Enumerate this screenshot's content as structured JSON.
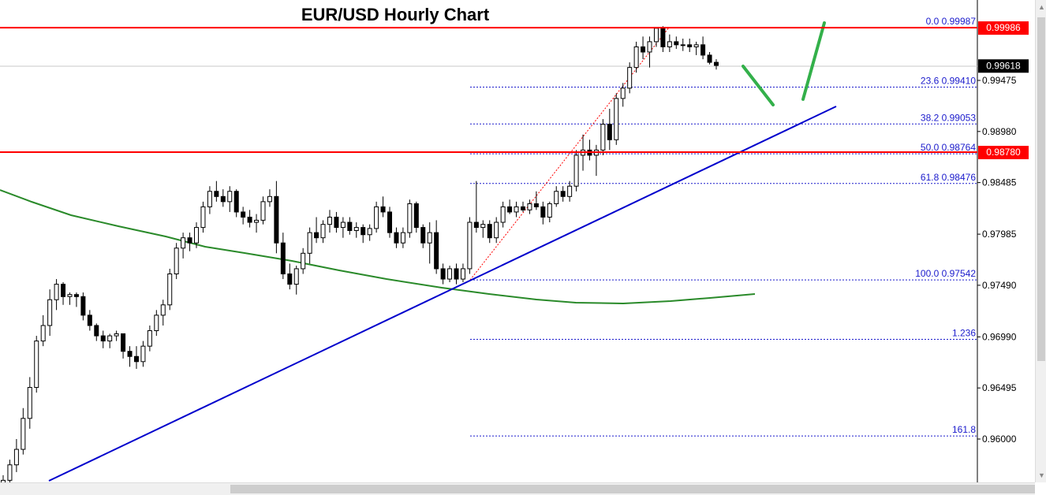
{
  "chart_data": {
    "type": "candlestick",
    "title": "EUR/USD Hourly Chart",
    "y_axis_ticks": [
      "0.99475",
      "0.98980",
      "0.98485",
      "0.97985",
      "0.97490",
      "0.96990",
      "0.96495",
      "0.96000"
    ],
    "ylim": [
      0.955,
      1.0009
    ],
    "levels": [
      {
        "name": "resistance",
        "value": 0.99986,
        "label": "0.99986",
        "color": "#ff0000"
      },
      {
        "name": "support",
        "value": 0.9878,
        "label": "0.98780",
        "color": "#ff0000"
      },
      {
        "name": "current-price",
        "value": 0.99618,
        "label": "0.99618",
        "color": "#000000"
      }
    ],
    "fibonacci": [
      {
        "label": "0.0 0.99987",
        "value": 0.99987
      },
      {
        "label": "23.6 0.99410",
        "value": 0.9941
      },
      {
        "label": "38.2 0.99053",
        "value": 0.99053
      },
      {
        "label": "50.0 0.98764",
        "value": 0.98764
      },
      {
        "label": "61.8 0.98476",
        "value": 0.98476
      },
      {
        "label": "100.0 0.97542",
        "value": 0.97542
      },
      {
        "label": "1.236",
        "value": 0.96966
      },
      {
        "label": "161.8",
        "value": 0.9603
      }
    ],
    "candles": [
      [
        0.9545,
        0.9565,
        0.953,
        0.956
      ],
      [
        0.956,
        0.958,
        0.955,
        0.9575
      ],
      [
        0.9575,
        0.96,
        0.9568,
        0.959
      ],
      [
        0.959,
        0.963,
        0.9585,
        0.962
      ],
      [
        0.962,
        0.966,
        0.961,
        0.965
      ],
      [
        0.965,
        0.97,
        0.9645,
        0.9695
      ],
      [
        0.9695,
        0.972,
        0.969,
        0.971
      ],
      [
        0.971,
        0.9745,
        0.97,
        0.9735
      ],
      [
        0.9735,
        0.9755,
        0.9725,
        0.975
      ],
      [
        0.975,
        0.9752,
        0.973,
        0.9738
      ],
      [
        0.9738,
        0.9742,
        0.973,
        0.974
      ],
      [
        0.974,
        0.9742,
        0.9728,
        0.9738
      ],
      [
        0.9738,
        0.9742,
        0.9715,
        0.972
      ],
      [
        0.972,
        0.9725,
        0.9705,
        0.971
      ],
      [
        0.971,
        0.9712,
        0.9695,
        0.97
      ],
      [
        0.97,
        0.9705,
        0.9688,
        0.9695
      ],
      [
        0.9695,
        0.9702,
        0.9688,
        0.97
      ],
      [
        0.97,
        0.9705,
        0.9695,
        0.9702
      ],
      [
        0.9702,
        0.9702,
        0.9678,
        0.9685
      ],
      [
        0.9685,
        0.969,
        0.967,
        0.968
      ],
      [
        0.968,
        0.969,
        0.9668,
        0.9675
      ],
      [
        0.9675,
        0.9695,
        0.967,
        0.969
      ],
      [
        0.969,
        0.971,
        0.9685,
        0.9705
      ],
      [
        0.9705,
        0.9725,
        0.97,
        0.972
      ],
      [
        0.972,
        0.9735,
        0.971,
        0.973
      ],
      [
        0.973,
        0.9765,
        0.9725,
        0.976
      ],
      [
        0.976,
        0.979,
        0.9755,
        0.9785
      ],
      [
        0.9785,
        0.98,
        0.9775,
        0.9795
      ],
      [
        0.9795,
        0.98,
        0.9782,
        0.979
      ],
      [
        0.979,
        0.981,
        0.9785,
        0.9805
      ],
      [
        0.9805,
        0.983,
        0.98,
        0.9825
      ],
      [
        0.9825,
        0.9845,
        0.9818,
        0.984
      ],
      [
        0.984,
        0.985,
        0.983,
        0.9835
      ],
      [
        0.9835,
        0.9842,
        0.9825,
        0.983
      ],
      [
        0.983,
        0.9845,
        0.982,
        0.984
      ],
      [
        0.984,
        0.9842,
        0.9815,
        0.982
      ],
      [
        0.982,
        0.9825,
        0.9808,
        0.9815
      ],
      [
        0.9815,
        0.9822,
        0.9805,
        0.981
      ],
      [
        0.981,
        0.9818,
        0.98,
        0.9812
      ],
      [
        0.9812,
        0.9835,
        0.9808,
        0.983
      ],
      [
        0.983,
        0.9842,
        0.9825,
        0.9835
      ],
      [
        0.9835,
        0.985,
        0.978,
        0.979
      ],
      [
        0.979,
        0.98,
        0.9755,
        0.976
      ],
      [
        0.976,
        0.977,
        0.9745,
        0.975
      ],
      [
        0.975,
        0.9768,
        0.974,
        0.9765
      ],
      [
        0.9765,
        0.9785,
        0.976,
        0.978
      ],
      [
        0.978,
        0.9805,
        0.977,
        0.98
      ],
      [
        0.98,
        0.9815,
        0.979,
        0.9795
      ],
      [
        0.9795,
        0.9812,
        0.979,
        0.9808
      ],
      [
        0.9808,
        0.9822,
        0.98,
        0.9815
      ],
      [
        0.9815,
        0.982,
        0.98,
        0.9805
      ],
      [
        0.9805,
        0.9815,
        0.9795,
        0.981
      ],
      [
        0.981,
        0.9815,
        0.9798,
        0.9802
      ],
      [
        0.9802,
        0.981,
        0.9795,
        0.9805
      ],
      [
        0.9805,
        0.9808,
        0.979,
        0.9798
      ],
      [
        0.9798,
        0.9808,
        0.9792,
        0.9804
      ],
      [
        0.9804,
        0.983,
        0.98,
        0.9825
      ],
      [
        0.9825,
        0.9835,
        0.9815,
        0.982
      ],
      [
        0.982,
        0.9825,
        0.9795,
        0.98
      ],
      [
        0.98,
        0.9805,
        0.9785,
        0.979
      ],
      [
        0.979,
        0.9805,
        0.9785,
        0.98
      ],
      [
        0.98,
        0.9832,
        0.9795,
        0.9828
      ],
      [
        0.9828,
        0.983,
        0.98,
        0.9805
      ],
      [
        0.9805,
        0.9808,
        0.9785,
        0.979
      ],
      [
        0.979,
        0.981,
        0.977,
        0.98
      ],
      [
        0.98,
        0.9812,
        0.976,
        0.9765
      ],
      [
        0.9765,
        0.977,
        0.975,
        0.9755
      ],
      [
        0.9755,
        0.9768,
        0.9752,
        0.9765
      ],
      [
        0.9765,
        0.977,
        0.975,
        0.9755
      ],
      [
        0.9755,
        0.977,
        0.9752,
        0.9765
      ],
      [
        0.9765,
        0.9815,
        0.976,
        0.981
      ],
      [
        0.981,
        0.985,
        0.98,
        0.9805
      ],
      [
        0.9805,
        0.9812,
        0.9795,
        0.9808
      ],
      [
        0.9808,
        0.9812,
        0.979,
        0.9795
      ],
      [
        0.9795,
        0.9815,
        0.979,
        0.981
      ],
      [
        0.981,
        0.983,
        0.9805,
        0.9825
      ],
      [
        0.9825,
        0.9832,
        0.9818,
        0.982
      ],
      [
        0.982,
        0.983,
        0.9815,
        0.9825
      ],
      [
        0.9825,
        0.983,
        0.982,
        0.9822
      ],
      [
        0.9822,
        0.9832,
        0.9818,
        0.9828
      ],
      [
        0.9828,
        0.984,
        0.9822,
        0.9825
      ],
      [
        0.9825,
        0.983,
        0.9808,
        0.9815
      ],
      [
        0.9815,
        0.983,
        0.981,
        0.9828
      ],
      [
        0.9828,
        0.9845,
        0.9825,
        0.984
      ],
      [
        0.984,
        0.9845,
        0.983,
        0.9835
      ],
      [
        0.9835,
        0.985,
        0.983,
        0.9845
      ],
      [
        0.9845,
        0.988,
        0.984,
        0.9875
      ],
      [
        0.9875,
        0.9895,
        0.986,
        0.988
      ],
      [
        0.988,
        0.989,
        0.987,
        0.9875
      ],
      [
        0.9875,
        0.9885,
        0.9855,
        0.988
      ],
      [
        0.988,
        0.991,
        0.9875,
        0.9905
      ],
      [
        0.9905,
        0.992,
        0.988,
        0.989
      ],
      [
        0.989,
        0.9935,
        0.9885,
        0.993
      ],
      [
        0.993,
        0.9945,
        0.9922,
        0.994
      ],
      [
        0.994,
        0.9965,
        0.9935,
        0.996
      ],
      [
        0.996,
        0.9985,
        0.9955,
        0.998
      ],
      [
        0.998,
        0.999,
        0.9968,
        0.9975
      ],
      [
        0.9975,
        0.999,
        0.996,
        0.9985
      ],
      [
        0.9985,
        0.9999,
        0.998,
        0.9998
      ],
      [
        0.9998,
        1.0,
        0.9975,
        0.998
      ],
      [
        0.998,
        0.9992,
        0.9975,
        0.9985
      ],
      [
        0.9985,
        0.999,
        0.9978,
        0.9982
      ],
      [
        0.9982,
        0.9988,
        0.9976,
        0.9982
      ],
      [
        0.9982,
        0.9988,
        0.9975,
        0.998
      ],
      [
        0.998,
        0.9985,
        0.9972,
        0.9982
      ],
      [
        0.9982,
        0.999,
        0.9968,
        0.9972
      ],
      [
        0.9972,
        0.9975,
        0.9963,
        0.9965
      ],
      [
        0.9965,
        0.9968,
        0.9958,
        0.9962
      ]
    ],
    "moving_average_color": "#2a8a2a",
    "trendline_color": "#0000cc",
    "projection_color": "#33b04a",
    "fibonacci_color": "#1a1acc",
    "grid": false
  }
}
